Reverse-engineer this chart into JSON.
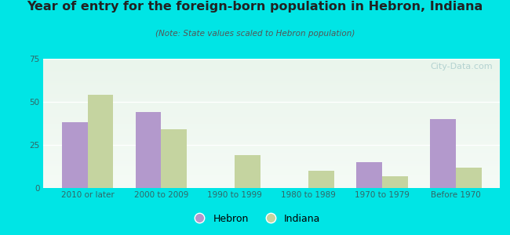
{
  "title": "Year of entry for the foreign-born population in Hebron, Indiana",
  "subtitle": "(Note: State values scaled to Hebron population)",
  "categories": [
    "2010 or later",
    "2000 to 2009",
    "1990 to 1999",
    "1980 to 1989",
    "1970 to 1979",
    "Before 1970"
  ],
  "hebron_values": [
    38,
    44,
    0,
    0,
    15,
    40
  ],
  "indiana_values": [
    54,
    34,
    19,
    10,
    7,
    12
  ],
  "hebron_color": "#b399cc",
  "indiana_color": "#c5d4a0",
  "background_color": "#00e5e5",
  "grad_top": "#eaf5ec",
  "grad_bottom": "#f5fbf6",
  "ylim": [
    0,
    75
  ],
  "yticks": [
    0,
    25,
    50,
    75
  ],
  "bar_width": 0.35,
  "watermark": "City-Data.com",
  "title_fontsize": 11.5,
  "subtitle_fontsize": 7.5,
  "tick_fontsize": 7.5,
  "legend_fontsize": 9
}
